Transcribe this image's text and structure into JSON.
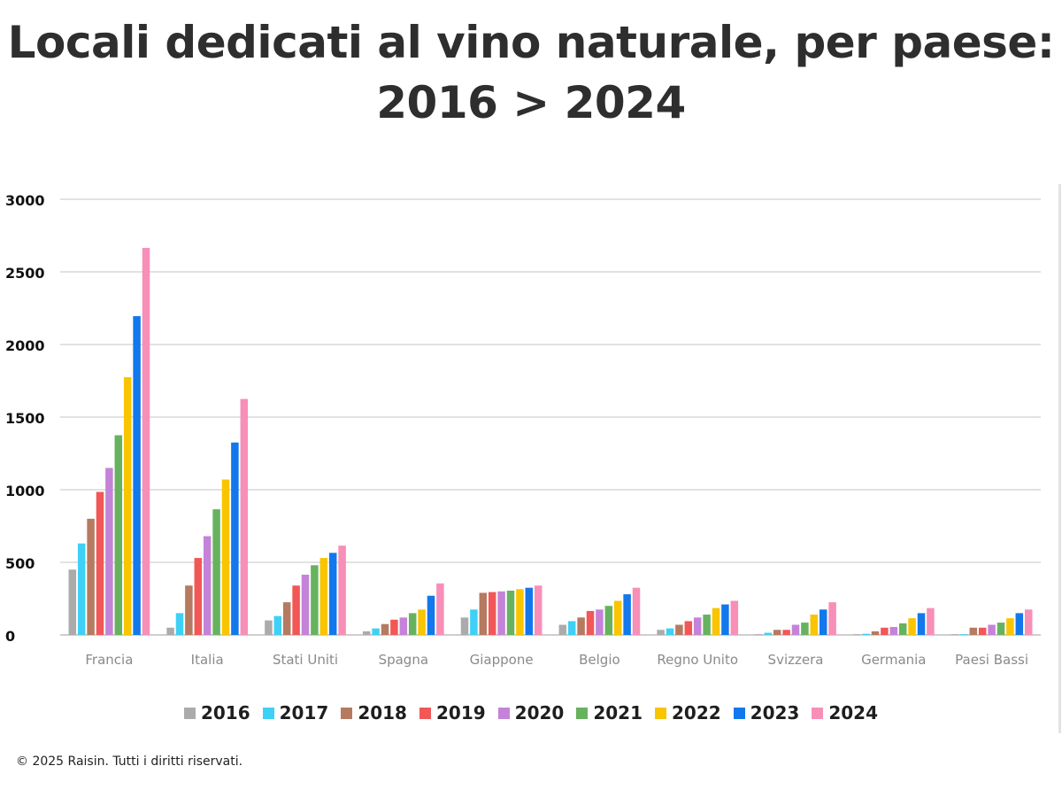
{
  "title_line1": "Locali dedicati al vino naturale, per paese:",
  "title_line2": "2016 > 2024",
  "footer": "© 2025 Raisin. Tutti i diritti riservati.",
  "chart_data": {
    "type": "bar",
    "title": "Locali dedicati al vino naturale, per paese: 2016 > 2024",
    "xlabel": "",
    "ylabel": "",
    "ylim": [
      0,
      3000
    ],
    "yticks": [
      0,
      500,
      1000,
      1500,
      2000,
      2500,
      3000
    ],
    "grid": true,
    "legend_position": "bottom",
    "categories": [
      "Francia",
      "Italia",
      "Stati Uniti",
      "Spagna",
      "Giappone",
      "Belgio",
      "Regno Unito",
      "Svizzera",
      "Germania",
      "Paesi Bassi"
    ],
    "series": [
      {
        "name": "2016",
        "color": "#ababab",
        "values": [
          450,
          50,
          100,
          25,
          120,
          70,
          35,
          5,
          5,
          5
        ]
      },
      {
        "name": "2017",
        "color": "#3fd0f5",
        "values": [
          630,
          150,
          130,
          45,
          175,
          95,
          45,
          15,
          8,
          5
        ]
      },
      {
        "name": "2018",
        "color": "#b57a60",
        "values": [
          800,
          340,
          225,
          75,
          290,
          120,
          70,
          35,
          25,
          50
        ]
      },
      {
        "name": "2019",
        "color": "#f25757",
        "values": [
          985,
          530,
          340,
          105,
          295,
          165,
          95,
          35,
          50,
          50
        ]
      },
      {
        "name": "2020",
        "color": "#c483d8",
        "values": [
          1150,
          680,
          415,
          120,
          300,
          175,
          120,
          70,
          55,
          70
        ]
      },
      {
        "name": "2021",
        "color": "#67b25e",
        "values": [
          1375,
          865,
          480,
          150,
          305,
          200,
          140,
          85,
          80,
          85
        ]
      },
      {
        "name": "2022",
        "color": "#f9c400",
        "values": [
          1775,
          1070,
          530,
          175,
          315,
          235,
          185,
          140,
          115,
          115
        ]
      },
      {
        "name": "2023",
        "color": "#1278ec",
        "values": [
          2195,
          1325,
          565,
          270,
          325,
          280,
          210,
          175,
          150,
          150
        ]
      },
      {
        "name": "2024",
        "color": "#f78fb8",
        "values": [
          2665,
          1625,
          615,
          355,
          340,
          325,
          235,
          225,
          185,
          175
        ]
      }
    ]
  }
}
